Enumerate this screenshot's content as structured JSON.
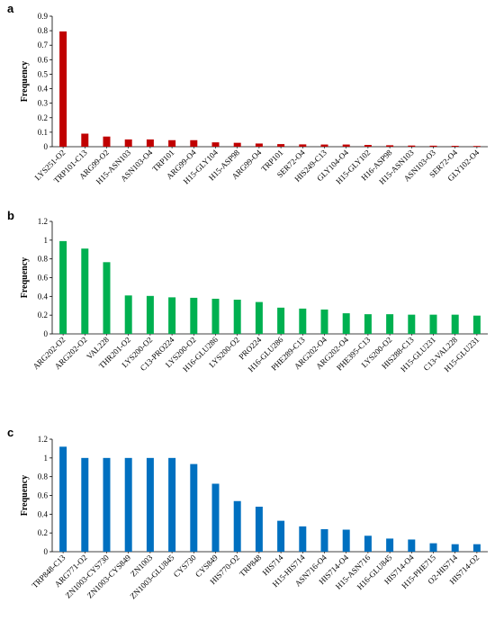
{
  "chart_data": [
    {
      "type": "bar",
      "panel_label": "a",
      "ylabel": "Frequency",
      "xlabel": "",
      "ylim": [
        0,
        0.9
      ],
      "yticks": [
        "0",
        "0.1",
        "0.2",
        "0.3",
        "0.4",
        "0.5",
        "0.6",
        "0.7",
        "0.8",
        "0.9"
      ],
      "color": "#c00000",
      "grid": false,
      "categories": [
        "LYS251-O2",
        "TRP101-C13",
        "ARG99-O2",
        "H15-ASN103",
        "ASN103-O4",
        "TRP101",
        "ARG99-O4",
        "H15-GLY104",
        "H15-ASP98",
        "ARG99-O4",
        "TRP101",
        "SER72-O4",
        "HIS249-C13",
        "GLY104-O4",
        "H15-GLY102",
        "H16-ASP98",
        "H15-ASN103",
        "ASN103-O3",
        "SER72-O4",
        "GLY102-O4"
      ],
      "values": [
        0.795,
        0.09,
        0.07,
        0.05,
        0.05,
        0.045,
        0.045,
        0.03,
        0.027,
        0.022,
        0.018,
        0.016,
        0.015,
        0.015,
        0.012,
        0.01,
        0.008,
        0.007,
        0.006,
        0.005
      ]
    },
    {
      "type": "bar",
      "panel_label": "b",
      "ylabel": "Frequency",
      "xlabel": "",
      "ylim": [
        0,
        1.2
      ],
      "yticks": [
        "0",
        "0.2",
        "0.4",
        "0.6",
        "0.8",
        "1",
        "1.2"
      ],
      "color": "#00b050",
      "grid": false,
      "categories": [
        "ARG202-O2",
        "ARG202-O2",
        "VAL228",
        "THR201-O2",
        "LYS200-O2",
        "C13-PRO224",
        "LYS200-O2",
        "H16-GLU286",
        "LYS200-O2",
        "PRO224",
        "H16-GLU286",
        "PHE289-C13",
        "ARG202-O4",
        "ARG202-O4",
        "PHE395-C13",
        "LYS200-O2",
        "HIS288-C13",
        "H15-GLU231",
        "C13-VAL228",
        "H15-GLU231"
      ],
      "values": [
        0.99,
        0.91,
        0.765,
        0.41,
        0.405,
        0.39,
        0.385,
        0.375,
        0.365,
        0.34,
        0.28,
        0.27,
        0.26,
        0.22,
        0.21,
        0.21,
        0.205,
        0.205,
        0.205,
        0.195
      ]
    },
    {
      "type": "bar",
      "panel_label": "c",
      "ylabel": "Frequency",
      "xlabel": "",
      "ylim": [
        0,
        1.2
      ],
      "yticks": [
        "0",
        "0.2",
        "0.4",
        "0.6",
        "0.8",
        "1",
        "1.2"
      ],
      "color": "#0070c0",
      "grid": false,
      "categories": [
        "TRP848-C13",
        "ARG771-O2",
        "ZN1003-CYS730",
        "ZN1003-CYS849",
        "ZN1003",
        "ZN1003-GLU845",
        "CYS730",
        "CYS849",
        "HIS770-O2",
        "TRP848",
        "HIS714",
        "H15-HIS714",
        "ASN716-O4",
        "HIS714-O4",
        "H15-ASN716",
        "H16-GLU845",
        "HIS714-O4",
        "H15-PHE715",
        "O2-HIS714",
        "HIS714-O2"
      ],
      "values": [
        1.12,
        1.0,
        1.0,
        1.0,
        1.0,
        1.0,
        0.935,
        0.725,
        0.54,
        0.48,
        0.33,
        0.27,
        0.24,
        0.235,
        0.17,
        0.14,
        0.13,
        0.09,
        0.08,
        0.08
      ]
    }
  ]
}
